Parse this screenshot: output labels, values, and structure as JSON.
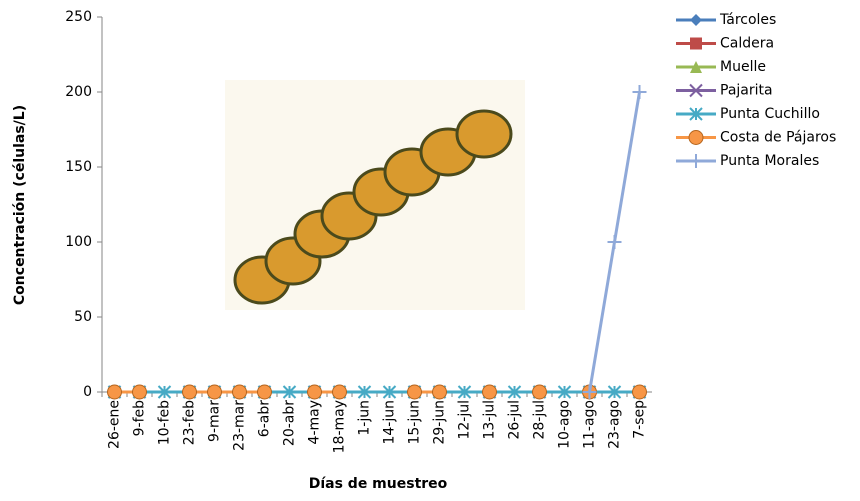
{
  "chart_data": {
    "type": "line",
    "y_label": "Concentración (células/L)",
    "x_label": "Días de muestreo",
    "categories": [
      "26-ene",
      "9-feb",
      "10-feb",
      "23-feb",
      "9-mar",
      "23-mar",
      "6-abr",
      "20-abr",
      "4-may",
      "18-may",
      "1-jun",
      "14-jun",
      "15-jun",
      "29-jun",
      "12-jul",
      "13-jul",
      "26-jul",
      "28-jul",
      "10-ago",
      "11-ago",
      "23-ago",
      "7-sep"
    ],
    "ylim": [
      0,
      250
    ],
    "yticks": [
      0,
      50,
      100,
      150,
      200,
      250
    ],
    "series": [
      {
        "name": "Tárcoles",
        "color": "#4a7ebb",
        "marker": "diamond",
        "values": [
          0,
          0,
          null,
          0,
          0,
          0,
          0,
          null,
          0,
          0,
          null,
          null,
          0,
          0,
          null,
          0,
          null,
          0,
          null,
          0,
          null,
          0
        ]
      },
      {
        "name": "Caldera",
        "color": "#be4b48",
        "marker": "square",
        "values": [
          0,
          0,
          null,
          0,
          0,
          0,
          0,
          null,
          0,
          0,
          null,
          null,
          0,
          0,
          null,
          0,
          null,
          0,
          null,
          0,
          null,
          0
        ]
      },
      {
        "name": "Muelle",
        "color": "#98b954",
        "marker": "triangle",
        "values": [
          0,
          0,
          null,
          0,
          0,
          0,
          0,
          null,
          0,
          0,
          null,
          null,
          0,
          0,
          null,
          0,
          null,
          0,
          null,
          0,
          null,
          0
        ]
      },
      {
        "name": "Pajarita",
        "color": "#7d60a0",
        "marker": "x",
        "values": [
          0,
          0,
          null,
          0,
          0,
          0,
          0,
          null,
          0,
          0,
          null,
          null,
          0,
          0,
          null,
          0,
          null,
          0,
          null,
          0,
          null,
          0
        ]
      },
      {
        "name": "Punta Cuchillo",
        "color": "#46aac5",
        "marker": "star",
        "values": [
          0,
          0,
          0,
          0,
          0,
          0,
          0,
          0,
          0,
          0,
          0,
          0,
          0,
          0,
          0,
          0,
          0,
          0,
          0,
          0,
          0,
          0
        ]
      },
      {
        "name": "Costa de Pájaros",
        "color": "#f79646",
        "marker": "circle",
        "values": [
          0,
          0,
          null,
          0,
          0,
          0,
          0,
          null,
          0,
          0,
          null,
          null,
          0,
          0,
          null,
          0,
          null,
          0,
          null,
          0,
          null,
          0
        ]
      },
      {
        "name": "Punta Morales",
        "color": "#8fa9d9",
        "marker": "plus",
        "values": [
          null,
          null,
          null,
          null,
          null,
          null,
          null,
          null,
          null,
          null,
          null,
          null,
          null,
          null,
          null,
          null,
          null,
          null,
          null,
          0,
          100,
          200
        ]
      }
    ]
  }
}
